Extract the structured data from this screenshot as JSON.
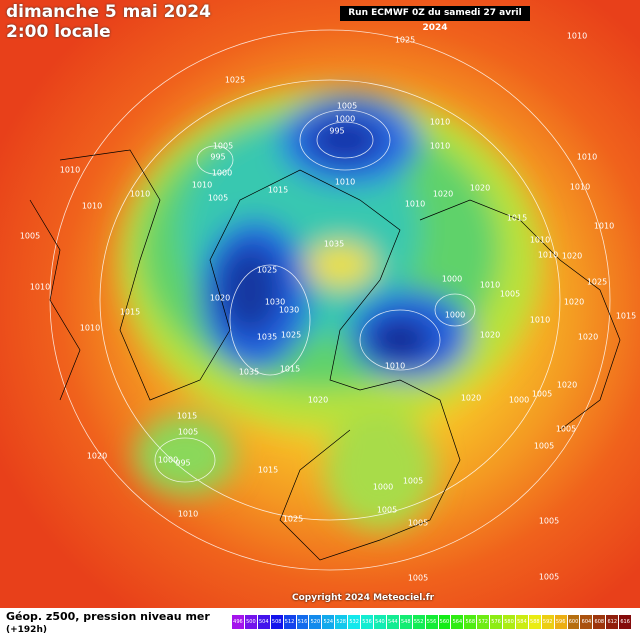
{
  "header": {
    "date": "dimanche 5 mai 2024",
    "time": "2:00 locale",
    "run": "Run ECMWF 0Z du samedi 27 avril 2024"
  },
  "footer": {
    "caption": "Géop. z500, pression niveau mer",
    "lead": "(+192h)",
    "copyright": "Copyright 2024 Meteociel.fr"
  },
  "colorbar": {
    "labels": [
      496,
      500,
      504,
      508,
      512,
      516,
      520,
      524,
      528,
      532,
      536,
      540,
      544,
      548,
      552,
      556,
      560,
      564,
      568,
      572,
      576,
      580,
      584,
      588,
      592,
      596,
      600,
      604,
      608,
      612,
      616
    ]
  },
  "pressure_labels": [
    1025,
    1010,
    1025,
    1005,
    1000,
    995,
    1010,
    1010,
    1005,
    995,
    1010,
    1000,
    1010,
    1010,
    1010,
    1005,
    1015,
    1020,
    1020,
    1010,
    1010,
    1010,
    1010,
    1015,
    1010,
    1005,
    1035,
    1010,
    1010,
    1020,
    1010,
    1000,
    1010,
    1005,
    1025,
    1020,
    1030,
    1030,
    1015,
    1000,
    1025,
    1020,
    1015,
    1010,
    1010,
    1035,
    1025,
    1020,
    1020,
    1035,
    1015,
    1010,
    1020,
    1000,
    1005,
    1020,
    1020,
    1015,
    1005,
    1005,
    1020,
    1000,
    995,
    1015,
    1005,
    1005,
    1000,
    1005,
    1010,
    1025,
    1005,
    1005,
    1005,
    1005
  ]
}
